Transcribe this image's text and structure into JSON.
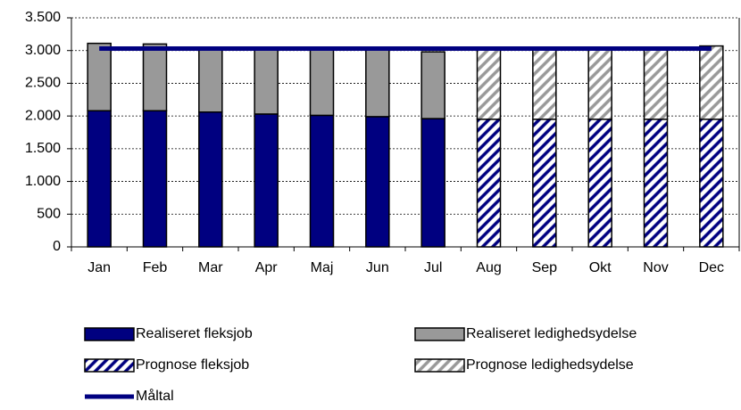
{
  "chart_data": {
    "type": "bar",
    "stacked": true,
    "categories": [
      "Jan",
      "Feb",
      "Mar",
      "Apr",
      "Maj",
      "Jun",
      "Jul",
      "Aug",
      "Sep",
      "Okt",
      "Nov",
      "Dec"
    ],
    "series": [
      {
        "name": "Realiseret fleksjob",
        "color": "#000080",
        "values": [
          2080,
          2080,
          2060,
          2030,
          2010,
          1990,
          1960,
          null,
          null,
          null,
          null,
          null
        ]
      },
      {
        "name": "Realiseret ledighedsydelse",
        "color": "#999999",
        "values": [
          1030,
          1020,
          970,
          1000,
          1010,
          1020,
          1020,
          null,
          null,
          null,
          null,
          null
        ]
      },
      {
        "name": "Prognose fleksjob",
        "color": "#000080",
        "pattern": "hatch",
        "values": [
          null,
          null,
          null,
          null,
          null,
          null,
          null,
          1950,
          1950,
          1950,
          1950,
          1950
        ]
      },
      {
        "name": "Prognose ledighedsydelse",
        "color": "#999999",
        "pattern": "hatch",
        "values": [
          null,
          null,
          null,
          null,
          null,
          null,
          null,
          1080,
          1080,
          1080,
          1080,
          1120
        ]
      },
      {
        "name": "Måltal",
        "color": "#000080",
        "type": "line",
        "values": [
          3030,
          3030,
          3030,
          3030,
          3030,
          3030,
          3030,
          3030,
          3030,
          3030,
          3030,
          3030
        ]
      }
    ],
    "ylim": [
      0,
      3500
    ],
    "yticks": [
      0,
      500,
      {
        "value": 1000,
        "label": "1.000"
      },
      {
        "value": 1500,
        "label": "1.500"
      },
      {
        "value": 2000,
        "label": "2.000"
      },
      {
        "value": 2500,
        "label": "2.500"
      },
      {
        "value": 3000,
        "label": "3.000"
      },
      {
        "value": 3500,
        "label": "3.500"
      }
    ],
    "grid": true,
    "legend": "bottom"
  }
}
